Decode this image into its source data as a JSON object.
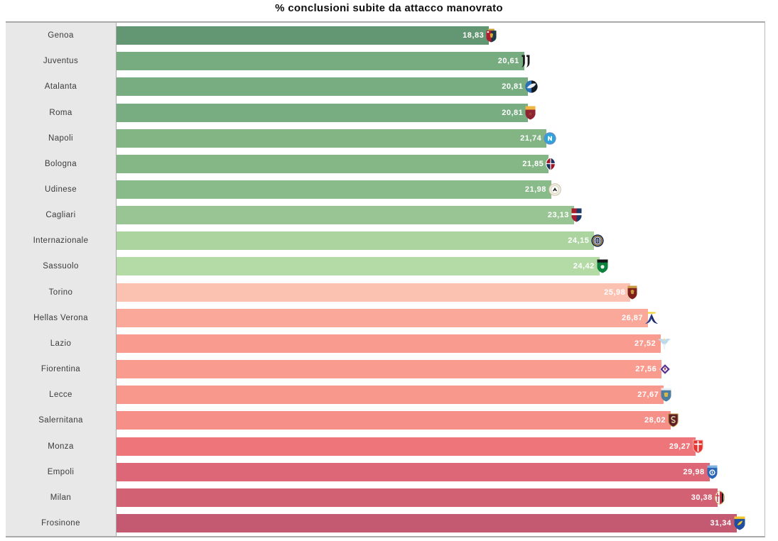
{
  "title": "% conclusioni subite da attacco manovrato",
  "chart_data": {
    "type": "bar",
    "orientation": "horizontal",
    "title": "% conclusioni subite da attacco manovrato",
    "xlim": [
      0,
      32.76
    ],
    "grid": false,
    "decimal_separator": ",",
    "value_label_color": "#ffffff",
    "label_panel_bg": "#e8e8e8",
    "border_color": "#a9a9a9",
    "categories": [
      "Genoa",
      "Juventus",
      "Atalanta",
      "Roma",
      "Napoli",
      "Bologna",
      "Udinese",
      "Cagliari",
      "Internazionale",
      "Sassuolo",
      "Torino",
      "Hellas Verona",
      "Lazio",
      "Fiorentina",
      "Lecce",
      "Salernitana",
      "Monza",
      "Empoli",
      "Milan",
      "Frosinone"
    ],
    "values": [
      18.83,
      20.61,
      20.81,
      20.81,
      21.74,
      21.85,
      21.98,
      23.13,
      24.15,
      24.42,
      25.98,
      26.87,
      27.52,
      27.56,
      27.67,
      28.02,
      29.27,
      29.98,
      30.38,
      31.34
    ],
    "value_labels": [
      "18,83",
      "20,61",
      "20,81",
      "20,81",
      "21,74",
      "21,85",
      "21,98",
      "23,13",
      "24,15",
      "24,42",
      "25,98",
      "26,87",
      "27,52",
      "27,56",
      "27,67",
      "28,02",
      "29,27",
      "29,98",
      "30,38",
      "31,34"
    ],
    "bar_colors": [
      "#639672",
      "#76ac80",
      "#77ad80",
      "#77ad80",
      "#83b584",
      "#85b786",
      "#89ba89",
      "#98c593",
      "#acd49f",
      "#b4daa6",
      "#fbc2b2",
      "#faa89a",
      "#f99b8e",
      "#f99b8e",
      "#f8978c",
      "#f58f88",
      "#ee767b",
      "#de6777",
      "#d26173",
      "#c45a72"
    ],
    "icons": [
      "genoa-crest",
      "juventus-logo",
      "atalanta-crest",
      "roma-crest",
      "napoli-crest",
      "bologna-crest",
      "udinese-crest",
      "cagliari-crest",
      "inter-crest",
      "sassuolo-crest",
      "torino-crest",
      "hellas-verona-crest",
      "lazio-crest",
      "fiorentina-crest",
      "lecce-crest",
      "salernitana-crest",
      "monza-crest",
      "empoli-crest",
      "milan-crest",
      "frosinone-crest"
    ]
  }
}
